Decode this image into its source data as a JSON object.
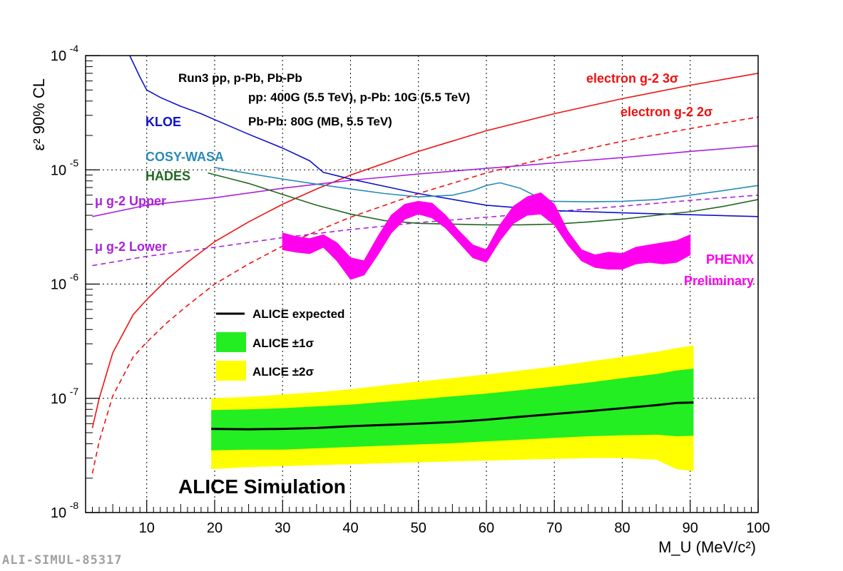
{
  "footer_id": "ALI-SIMUL-85317",
  "chart_data": {
    "type": "line",
    "title": "",
    "xlabel": "M_U (MeV/c²)",
    "ylabel": "ε² 90% CL",
    "xlim": [
      1,
      100
    ],
    "ylim": [
      1e-08,
      0.0001
    ],
    "yscale": "log",
    "grid": true,
    "x_ticks": [
      10,
      20,
      30,
      40,
      50,
      60,
      70,
      80,
      90,
      100
    ],
    "y_tick_labels": [
      {
        "value": 1e-08,
        "base": "10",
        "exp": "-8"
      },
      {
        "value": 1e-07,
        "base": "10",
        "exp": "-7"
      },
      {
        "value": 1e-06,
        "base": "10",
        "exp": "-6"
      },
      {
        "value": 1e-05,
        "base": "10",
        "exp": "-5"
      },
      {
        "value": 0.0001,
        "base": "10",
        "exp": "-4"
      }
    ],
    "header_lines": [
      "Run3  pp, p-Pb, Pb-Pb",
      "pp: 400G (5.5 TeV), p-Pb: 10G (5.5 TeV)",
      "Pb-Pb: 80G (MB, 5.5 TeV)"
    ],
    "simulation_label": "ALICE Simulation",
    "legend": [
      {
        "label": "ALICE expected",
        "kind": "line",
        "color": "#000000"
      },
      {
        "label": "ALICE ±1σ",
        "kind": "fill",
        "color": "#22ee22"
      },
      {
        "label": "ALICE ±2σ",
        "kind": "fill",
        "color": "#ffff00"
      }
    ],
    "curve_labels": {
      "kloe": "KLOE",
      "cosy_wasa": "COSY-WASA",
      "hades": "HADES",
      "mu_upper": "μ g-2 Upper",
      "mu_lower": "μ g-2 Lower",
      "e3": "electron g-2 3σ",
      "e2": "electron g-2 2σ",
      "phenix_1": "PHENIX",
      "phenix_2": "Preliminary"
    },
    "colors": {
      "kloe": "#1010cc",
      "cosy_wasa": "#2a8ab8",
      "hades": "#226622",
      "mu": "#aa22dd",
      "electron": "#ee1111",
      "phenix": "#ff00ee",
      "band1": "#22ee22",
      "band2": "#ffff00",
      "expected": "#000000"
    },
    "series": [
      {
        "name": "electron g-2 3σ",
        "style": "solid",
        "color": "#ee1111",
        "x": [
          2,
          3,
          5,
          8,
          10,
          13,
          16,
          20,
          25,
          30,
          35,
          40,
          50,
          60,
          70,
          80,
          90,
          100
        ],
        "y": [
          5.5e-08,
          1e-07,
          2.5e-07,
          5.4e-07,
          7.3e-07,
          1.1e-06,
          1.55e-06,
          2.35e-06,
          3.5e-06,
          5e-06,
          6.8e-06,
          9e-06,
          1.45e-05,
          2.2e-05,
          3.1e-05,
          4.2e-05,
          5.5e-05,
          7e-05
        ]
      },
      {
        "name": "electron g-2 2σ",
        "style": "dashed",
        "color": "#ee1111",
        "x": [
          2,
          3,
          5,
          8,
          10,
          13,
          16,
          20,
          25,
          30,
          35,
          40,
          50,
          60,
          70,
          80,
          90,
          100
        ],
        "y": [
          2.2e-08,
          4.2e-08,
          1.05e-07,
          2.3e-07,
          3.1e-07,
          4.6e-07,
          6.5e-07,
          1e-06,
          1.5e-06,
          2.15e-06,
          2.9e-06,
          3.85e-06,
          6.2e-06,
          9.4e-06,
          1.32e-05,
          1.78e-05,
          2.3e-05,
          2.9e-05
        ]
      },
      {
        "name": "μ g-2 Upper",
        "style": "solid",
        "color": "#aa22dd",
        "x": [
          2,
          10,
          20,
          30,
          40,
          50,
          60,
          70,
          80,
          90,
          100
        ],
        "y": [
          3.9e-06,
          4.9e-06,
          5.7e-06,
          6.9e-06,
          8.1e-06,
          9.2e-06,
          1.03e-05,
          1.15e-05,
          1.28e-05,
          1.45e-05,
          1.62e-05
        ]
      },
      {
        "name": "μ g-2 Lower",
        "style": "dashed",
        "color": "#aa22dd",
        "x": [
          2,
          10,
          20,
          30,
          40,
          50,
          60,
          70,
          80,
          90,
          100
        ],
        "y": [
          1.45e-06,
          1.75e-06,
          2.1e-06,
          2.55e-06,
          3e-06,
          3.45e-06,
          3.85e-06,
          4.3e-06,
          4.8e-06,
          5.4e-06,
          6e-06
        ]
      },
      {
        "name": "KLOE",
        "style": "solid",
        "color": "#1010cc",
        "x": [
          7.5,
          9,
          10,
          12,
          15,
          18,
          20,
          25,
          30,
          34,
          36,
          40,
          50,
          60,
          70,
          80,
          90,
          100
        ],
        "y": [
          0.0001,
          6.5e-05,
          5e-05,
          4.3e-05,
          3.6e-05,
          3.1e-05,
          2.75e-05,
          2.05e-05,
          1.55e-05,
          1.2e-05,
          9.5e-06,
          8.3e-06,
          6.2e-06,
          4.9e-06,
          4.4e-06,
          4.2e-06,
          4.05e-06,
          3.9e-06
        ]
      },
      {
        "name": "COSY-WASA",
        "style": "solid",
        "color": "#2a8ab8",
        "x": [
          20,
          25,
          30,
          35,
          40,
          45,
          50,
          55,
          58,
          60,
          62,
          65,
          68,
          70,
          75,
          80,
          85,
          90,
          95,
          100
        ],
        "y": [
          1.05e-05,
          9.3e-06,
          8.3e-06,
          7.5e-06,
          6.8e-06,
          6.2e-06,
          5.8e-06,
          6e-06,
          6.6e-06,
          7.3e-06,
          7.7e-06,
          6.9e-06,
          5.6e-06,
          5.3e-06,
          5.25e-06,
          5.3e-06,
          5.5e-06,
          6e-06,
          6.6e-06,
          7.3e-06
        ]
      },
      {
        "name": "HADES",
        "style": "solid",
        "color": "#226622",
        "x": [
          19,
          25,
          30,
          35,
          40,
          45,
          50,
          55,
          60,
          65,
          70,
          75,
          80,
          85,
          90,
          95,
          100
        ],
        "y": [
          9.4e-06,
          7.6e-06,
          6.1e-06,
          4.9e-06,
          4.1e-06,
          3.6e-06,
          3.4e-06,
          3.35e-06,
          3.3e-06,
          3.3e-06,
          3.35e-06,
          3.5e-06,
          3.7e-06,
          4e-06,
          4.3e-06,
          4.8e-06,
          5.5e-06
        ]
      },
      {
        "name": "PHENIX Preliminary",
        "style": "band",
        "color": "#ff00ee",
        "x": [
          30,
          32,
          34,
          36,
          38,
          40,
          42,
          44,
          46,
          48,
          50,
          52,
          54,
          56,
          58,
          60,
          62,
          64,
          66,
          68,
          70,
          72,
          74,
          76,
          78,
          80,
          82,
          84,
          86,
          88,
          90
        ],
        "lo": [
          2e-06,
          1.9e-06,
          1.85e-06,
          2.1e-06,
          1.6e-06,
          1.1e-06,
          1.2e-06,
          1.8e-06,
          2.8e-06,
          3.7e-06,
          4.1e-06,
          3.8e-06,
          3.1e-06,
          2.3e-06,
          1.7e-06,
          1.55e-06,
          2.4e-06,
          3.4e-06,
          4e-06,
          4.1e-06,
          3.3e-06,
          2.2e-06,
          1.6e-06,
          1.4e-06,
          1.35e-06,
          1.35e-06,
          1.5e-06,
          1.55e-06,
          1.5e-06,
          1.55e-06,
          1.8e-06
        ],
        "hi": [
          2.8e-06,
          2.6e-06,
          2.5e-06,
          2.7e-06,
          2.3e-06,
          1.7e-06,
          1.6e-06,
          2.6e-06,
          4e-06,
          5e-06,
          5.3e-06,
          5.1e-06,
          4e-06,
          2.9e-06,
          2.2e-06,
          2e-06,
          3.3e-06,
          4.8e-06,
          5.8e-06,
          6.3e-06,
          5e-06,
          2.9e-06,
          2e-06,
          1.8e-06,
          1.9e-06,
          1.85e-06,
          2.1e-06,
          2.2e-06,
          2.3e-06,
          2.4e-06,
          2.7e-06
        ]
      },
      {
        "name": "ALICE expected",
        "style": "band-central",
        "x": [
          19.5,
          25,
          30,
          35,
          40,
          45,
          50,
          55,
          60,
          65,
          70,
          75,
          80,
          85,
          88,
          90.5
        ],
        "mid": [
          5.4e-08,
          5.35e-08,
          5.4e-08,
          5.5e-08,
          5.7e-08,
          5.85e-08,
          6e-08,
          6.2e-08,
          6.5e-08,
          6.9e-08,
          7.3e-08,
          7.7e-08,
          8.2e-08,
          8.7e-08,
          9.1e-08,
          9.2e-08
        ],
        "s1_lo": [
          3.5e-08,
          3.55e-08,
          3.55e-08,
          3.65e-08,
          3.75e-08,
          3.85e-08,
          3.95e-08,
          4.05e-08,
          4.2e-08,
          4.35e-08,
          4.5e-08,
          4.65e-08,
          4.75e-08,
          4.8e-08,
          4.65e-08,
          4.7e-08
        ],
        "s1_hi": [
          7.9e-08,
          8e-08,
          8.2e-08,
          8.5e-08,
          8.8e-08,
          9.3e-08,
          9.8e-08,
          1.04e-07,
          1.1e-07,
          1.18e-07,
          1.27e-07,
          1.37e-07,
          1.5e-07,
          1.63e-07,
          1.75e-07,
          1.82e-07
        ],
        "s2_lo": [
          2.4e-08,
          2.5e-08,
          2.55e-08,
          2.6e-08,
          2.65e-08,
          2.7e-08,
          2.75e-08,
          2.8e-08,
          2.85e-08,
          2.9e-08,
          2.95e-08,
          3e-08,
          3e-08,
          2.9e-08,
          2.4e-08,
          2.3e-08
        ],
        "s2_hi": [
          1e-07,
          1.03e-07,
          1.08e-07,
          1.13e-07,
          1.2e-07,
          1.3e-07,
          1.4e-07,
          1.5e-07,
          1.62e-07,
          1.75e-07,
          1.9e-07,
          2.1e-07,
          2.3e-07,
          2.55e-07,
          2.75e-07,
          2.9e-07
        ]
      }
    ]
  }
}
